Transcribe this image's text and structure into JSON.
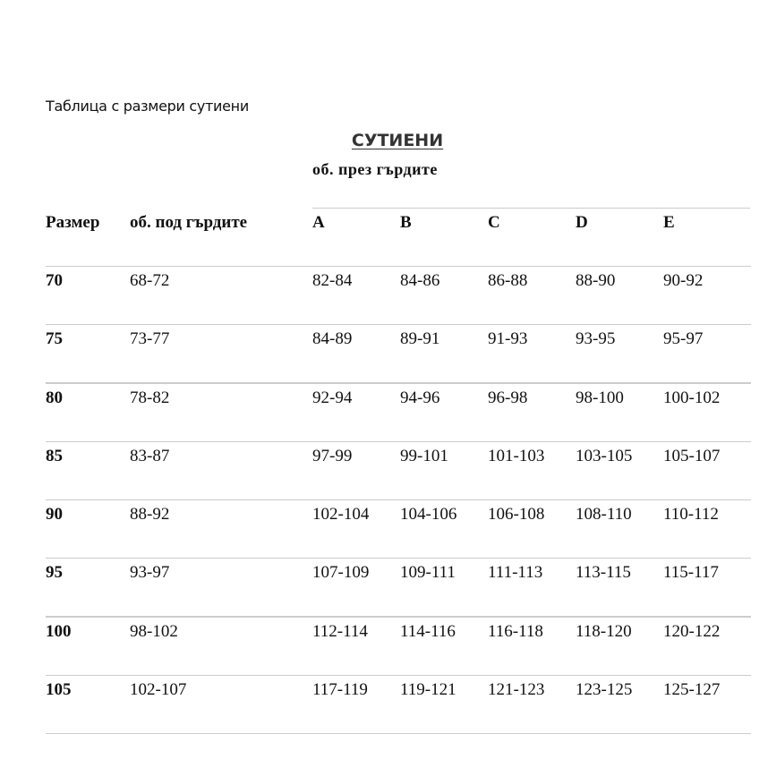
{
  "intro": "Таблица с размери сутиени",
  "heading": "СУТИЕНИ",
  "subheading": "об. през гърдите",
  "table": {
    "headers": [
      "Размер",
      "об. под гърдите",
      "A",
      "B",
      "C",
      "D",
      "E"
    ],
    "rows": [
      [
        "70",
        "68-72",
        "82-84",
        "84-86",
        "86-88",
        "88-90",
        "90-92"
      ],
      [
        "75",
        "73-77",
        "84-89",
        "89-91",
        "91-93",
        "93-95",
        "95-97"
      ],
      [
        "80",
        "78-82",
        "92-94",
        "94-96",
        "96-98",
        "98-100",
        "100-102"
      ],
      [
        "85",
        "83-87",
        "97-99",
        "99-101",
        "101-103",
        "103-105",
        "105-107"
      ],
      [
        "90",
        "88-92",
        "102-104",
        "104-106",
        "106-108",
        "108-110",
        "110-112"
      ],
      [
        "95",
        "93-97",
        "107-109",
        "109-111",
        "111-113",
        "113-115",
        "115-117"
      ],
      [
        "100",
        "98-102",
        "112-114",
        "114-116",
        "116-118",
        "118-120",
        "120-122"
      ],
      [
        "105",
        "102-107",
        "117-119",
        "119-121",
        "121-123",
        "123-125",
        "125-127"
      ]
    ]
  },
  "colors": {
    "heading": "#333333",
    "rule": "#cccccc"
  }
}
